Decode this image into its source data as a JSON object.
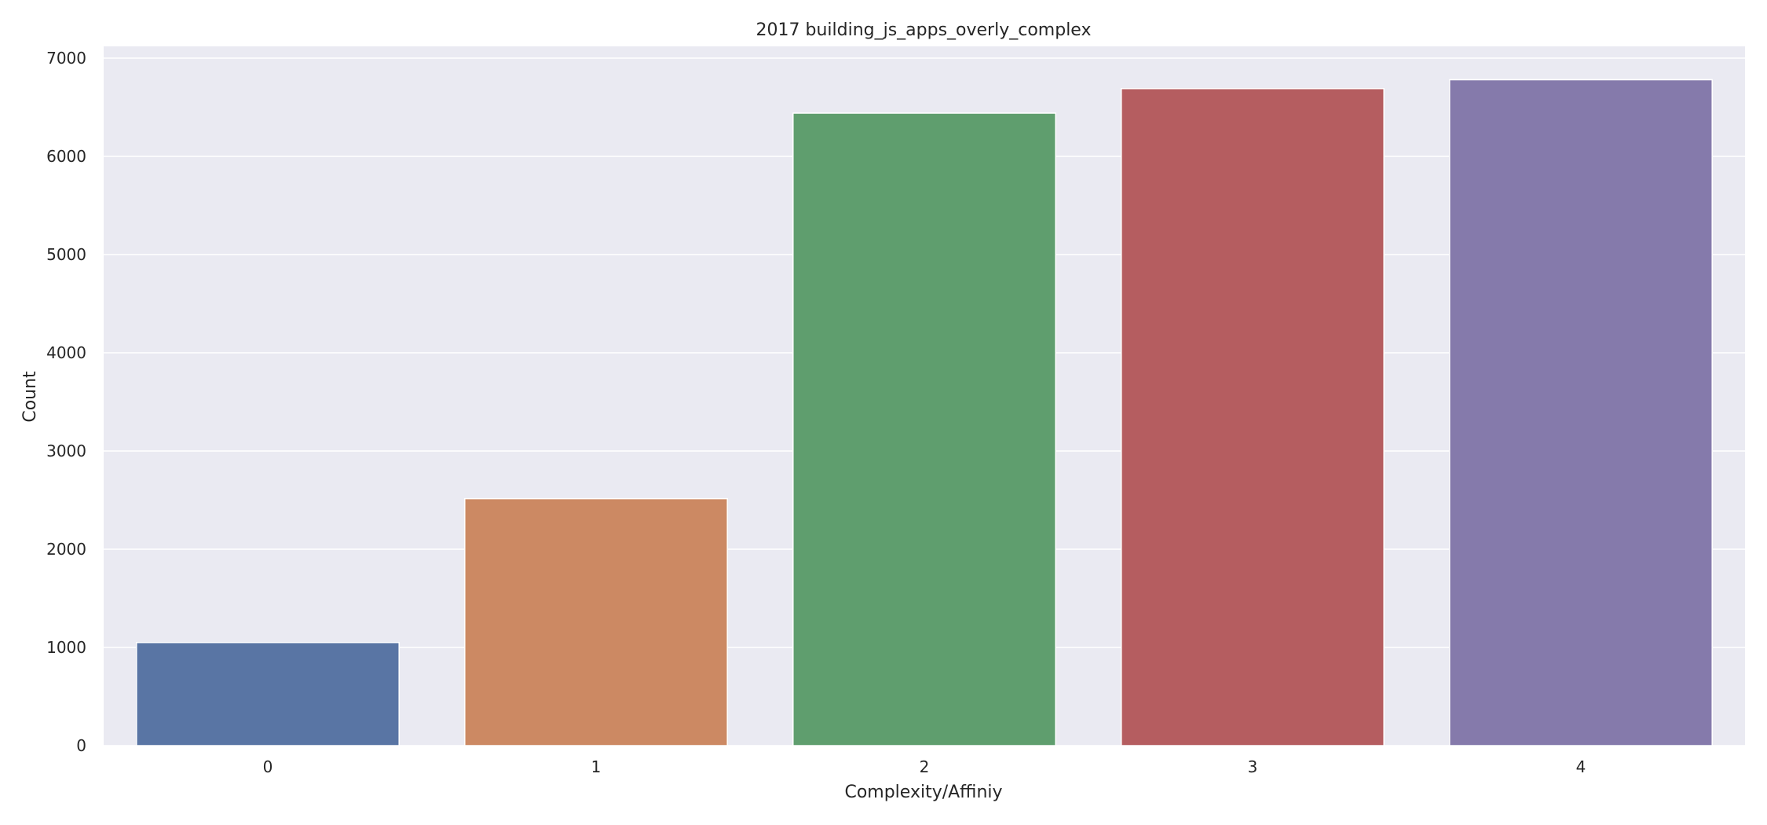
{
  "chart_data": {
    "type": "bar",
    "title": "2017 building_js_apps_overly_complex",
    "xlabel": "Complexity/Affiniy",
    "ylabel": "Count",
    "categories": [
      "0",
      "1",
      "2",
      "3",
      "4"
    ],
    "values": [
      1050,
      2515,
      6440,
      6690,
      6780
    ],
    "ylim": [
      0,
      7120
    ],
    "yticks": [
      0,
      1000,
      2000,
      3000,
      4000,
      5000,
      6000,
      7000
    ],
    "ytick_labels": [
      "0",
      "1000",
      "2000",
      "3000",
      "4000",
      "5000",
      "6000",
      "7000"
    ],
    "colors": [
      "#5975a4",
      "#cc8963",
      "#5f9e6e",
      "#b55d60",
      "#857aab"
    ],
    "background": "#eaeaf2",
    "grid": true,
    "grid_color": "#ffffff"
  }
}
